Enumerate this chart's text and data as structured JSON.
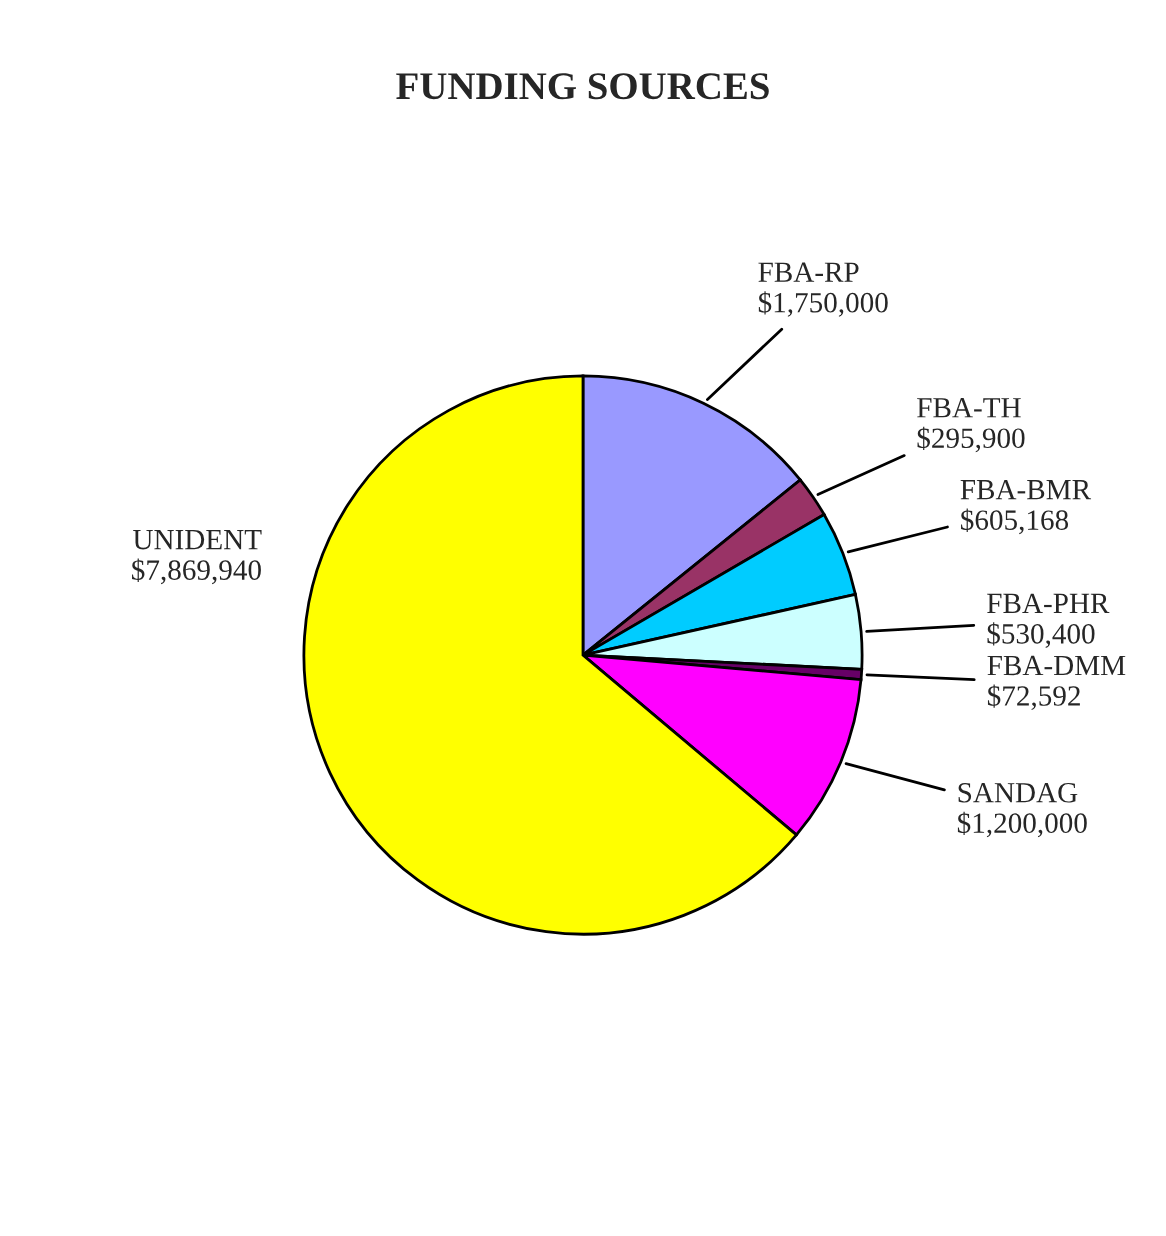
{
  "chart_data": {
    "type": "pie",
    "title": "FUNDING SOURCES",
    "categories": [
      "FBA-RP",
      "FBA-TH",
      "FBA-BMR",
      "FBA-PHR",
      "FBA-DMM",
      "SANDAG",
      "UNIDENT"
    ],
    "values": [
      1750000,
      295900,
      605168,
      530400,
      72592,
      1200000,
      7869940
    ],
    "value_labels": [
      "$1,750,000",
      "$295,900",
      "$605,168",
      "$530,400",
      "$72,592",
      "$1,200,000",
      "$7,869,940"
    ],
    "colors": [
      "#9999ff",
      "#993366",
      "#00ccff",
      "#ccffff",
      "#660066",
      "#ff00ff",
      "#ffff00"
    ],
    "legend": false
  }
}
